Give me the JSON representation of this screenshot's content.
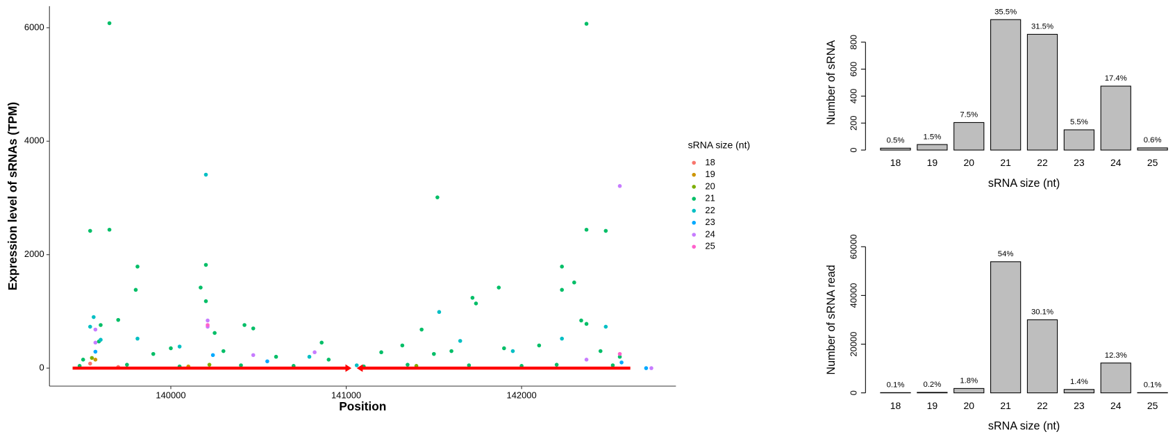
{
  "chart_data": [
    {
      "type": "scatter",
      "x_label": "Position",
      "y_label": "Expression level of sRNAs (TPM)",
      "legend_title": "sRNA size (nt)",
      "xlim": [
        139308,
        142880
      ],
      "xticks": [
        140000,
        141000,
        142000
      ],
      "ylim": [
        -317,
        6380
      ],
      "yticks": [
        0,
        2000,
        4000,
        6000
      ],
      "series": [
        {
          "name": "18",
          "color": "#F8766D",
          "x": [
            139540,
            139700
          ],
          "values": [
            80,
            20
          ]
        },
        {
          "name": "19",
          "color": "#CD9600",
          "x": [
            139570,
            140100
          ],
          "values": [
            150,
            30
          ]
        },
        {
          "name": "20",
          "color": "#7CAE00",
          "x": [
            139550,
            140220,
            141400
          ],
          "values": [
            180,
            60,
            40
          ]
        },
        {
          "name": "21",
          "color": "#00BE67",
          "x": [
            139650,
            142370,
            139540,
            139650,
            141520,
            142370,
            142480,
            139810,
            140200,
            142230,
            139800,
            140170,
            142230,
            141870,
            140200,
            141720,
            141740,
            142300,
            139600,
            139700,
            140420,
            140470,
            141430,
            140860,
            139590,
            140250,
            142340,
            142370,
            139500,
            139900,
            140000,
            140300,
            140600,
            141200,
            141320,
            141600,
            141900,
            142100,
            142450,
            142560,
            140900,
            141500,
            139480,
            139750,
            140050,
            140400,
            140700,
            141100,
            141350,
            141700,
            142000,
            142200,
            142520
          ],
          "values": [
            6080,
            6070,
            2420,
            2440,
            3010,
            2440,
            2420,
            1790,
            1820,
            1790,
            1380,
            1420,
            1380,
            1420,
            1180,
            1240,
            1140,
            1510,
            760,
            850,
            760,
            700,
            680,
            450,
            470,
            620,
            840,
            780,
            150,
            250,
            350,
            300,
            200,
            280,
            400,
            300,
            350,
            400,
            300,
            200,
            150,
            250,
            40,
            60,
            30,
            50,
            40,
            30,
            60,
            50,
            40,
            60,
            50
          ]
        },
        {
          "name": "22",
          "color": "#00BFC4",
          "x": [
            140200,
            139560,
            139540,
            141530,
            142230,
            139810,
            142480,
            139600,
            141650,
            141060,
            140790,
            140050,
            141950
          ],
          "values": [
            3410,
            900,
            730,
            990,
            520,
            520,
            730,
            500,
            480,
            50,
            200,
            380,
            300
          ]
        },
        {
          "name": "23",
          "color": "#00A9FF",
          "x": [
            139570,
            140240,
            140550,
            142710,
            142570
          ],
          "values": [
            290,
            230,
            120,
            0,
            100
          ]
        },
        {
          "name": "24",
          "color": "#C77CFF",
          "x": [
            142560,
            139570,
            139570,
            140210,
            140210,
            140820,
            140470,
            142370,
            142740
          ],
          "values": [
            3210,
            680,
            450,
            840,
            730,
            280,
            230,
            150,
            0
          ]
        },
        {
          "name": "25",
          "color": "#FF61CC",
          "x": [
            140210,
            142560
          ],
          "values": [
            760,
            250
          ]
        }
      ],
      "features": [
        {
          "start": 139440,
          "end": 141030,
          "color": "#FF0000"
        },
        {
          "start": 142620,
          "end": 141060,
          "color": "#FF0000"
        }
      ]
    },
    {
      "type": "bar",
      "x_label": "sRNA size (nt)",
      "y_label": "Number of sRNA",
      "categories": [
        "18",
        "19",
        "20",
        "21",
        "22",
        "23",
        "24",
        "25"
      ],
      "values": [
        14,
        41,
        204,
        967,
        858,
        150,
        474,
        16
      ],
      "labels": [
        "0.5%",
        "1.5%",
        "7.5%",
        "35.5%",
        "31.5%",
        "5.5%",
        "17.4%",
        "0.6%"
      ],
      "color": "#BEBEBE",
      "ylim": [
        0,
        1000
      ],
      "yticks": [
        0,
        200,
        400,
        600,
        800
      ]
    },
    {
      "type": "bar",
      "x_label": "sRNA size (nt)",
      "y_label": "Number of sRNA read",
      "categories": [
        "18",
        "19",
        "20",
        "21",
        "22",
        "23",
        "24",
        "25"
      ],
      "values": [
        100,
        200,
        1800,
        53850,
        30000,
        1400,
        12260,
        100
      ],
      "labels": [
        "0.1%",
        "0.2%",
        "1.8%",
        "54%",
        "30.1%",
        "1.4%",
        "12.3%",
        "0.1%"
      ],
      "color": "#BEBEBE",
      "ylim": [
        0,
        60000
      ],
      "yticks": [
        0,
        20000,
        40000,
        60000
      ]
    }
  ]
}
